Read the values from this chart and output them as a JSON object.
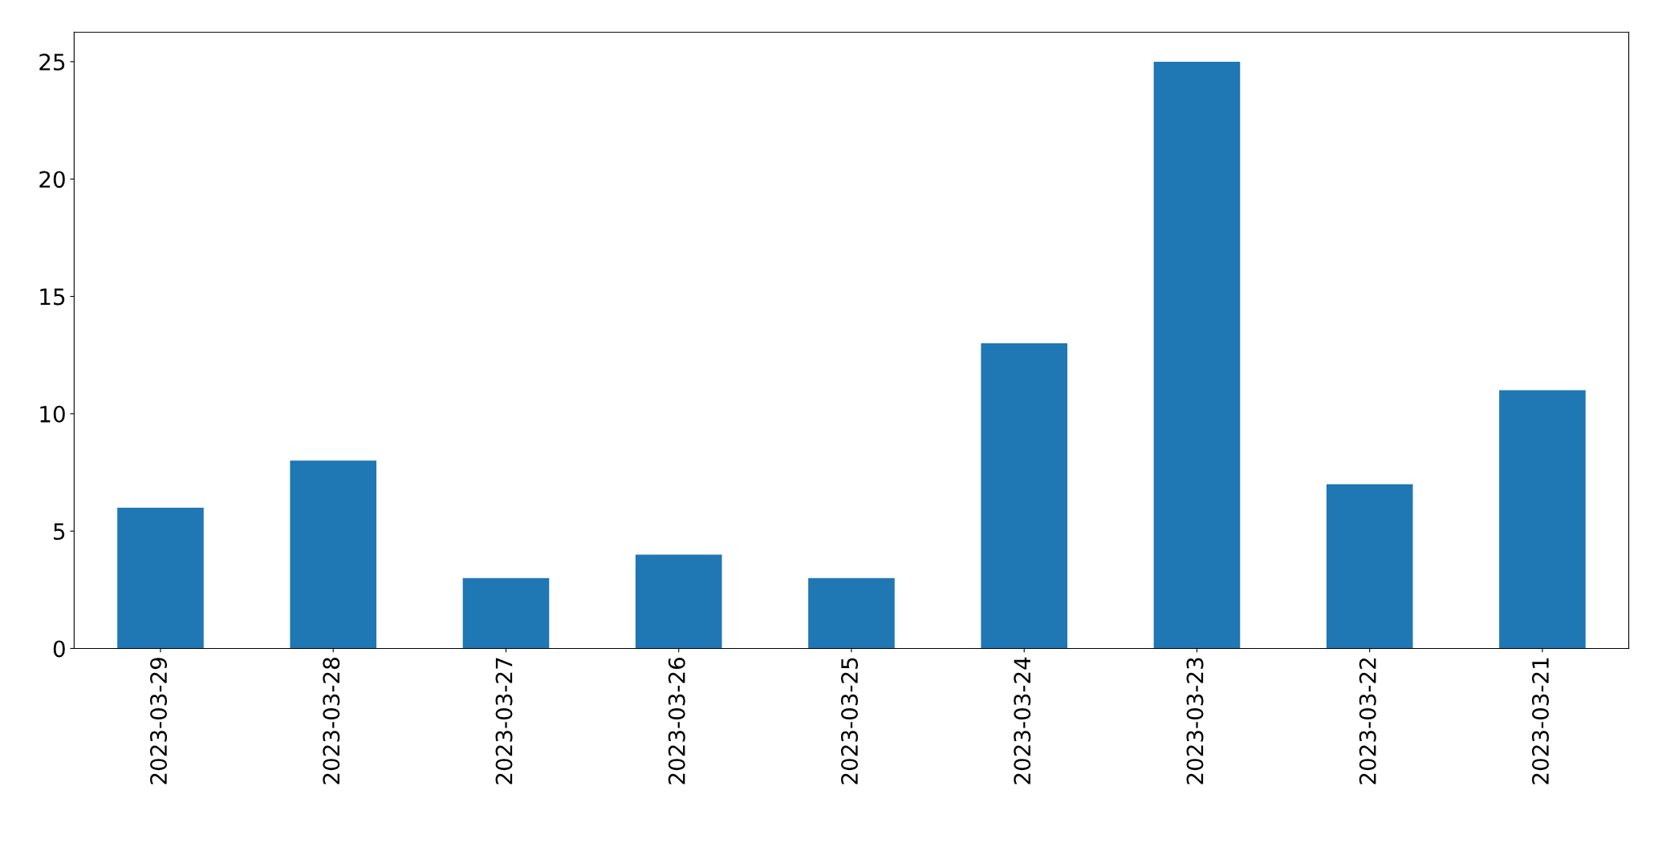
{
  "chart_data": {
    "type": "bar",
    "categories": [
      "2023-03-29",
      "2023-03-28",
      "2023-03-27",
      "2023-03-26",
      "2023-03-25",
      "2023-03-24",
      "2023-03-23",
      "2023-03-22",
      "2023-03-21"
    ],
    "values": [
      6,
      8,
      3,
      4,
      3,
      13,
      25,
      7,
      11
    ],
    "color": "#1f77b4",
    "ylim": [
      0,
      26.25
    ],
    "yticks": [
      0,
      5,
      10,
      15,
      20,
      25
    ],
    "grid": false,
    "legend": false
  }
}
